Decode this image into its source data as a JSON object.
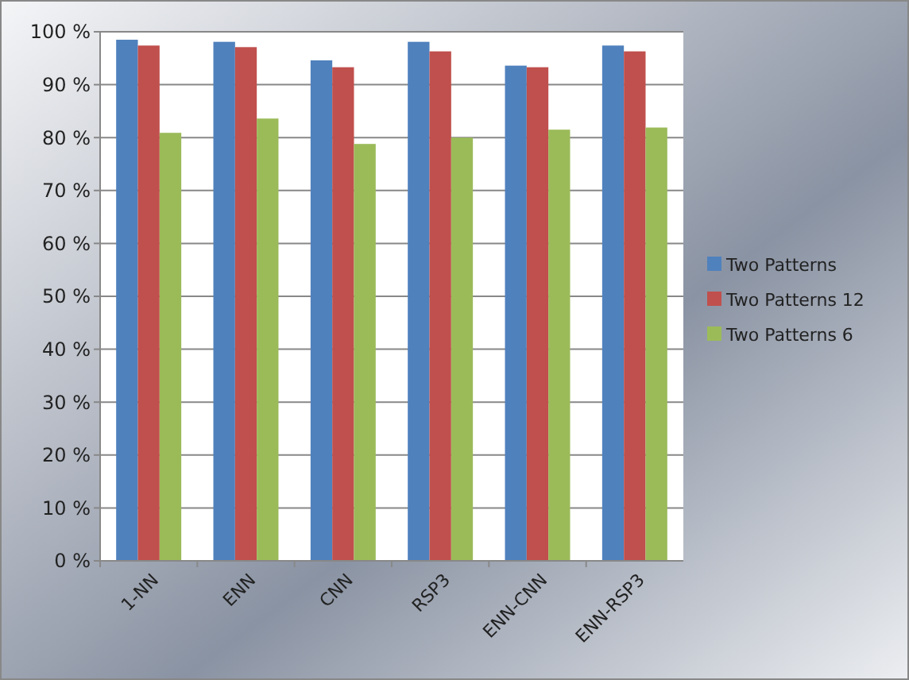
{
  "chart_data": {
    "type": "bar",
    "categories": [
      "1-NN",
      "ENN",
      "CNN",
      "RSP3",
      "ENN-CNN",
      "ENN-RSP3"
    ],
    "series": [
      {
        "name": "Two Patterns",
        "color": "#4f81bd",
        "values": [
          98.5,
          98.1,
          94.6,
          98.1,
          93.6,
          97.4
        ]
      },
      {
        "name": "Two Patterns 12",
        "color": "#c0504d",
        "values": [
          97.4,
          97.1,
          93.3,
          96.3,
          93.3,
          96.3
        ]
      },
      {
        "name": "Two Patterns 6",
        "color": "#9bbb59",
        "values": [
          80.9,
          83.6,
          78.8,
          80.0,
          81.5,
          81.9
        ]
      }
    ],
    "ylim": [
      0,
      100
    ],
    "yticks": [
      {
        "value": 0,
        "label": "0 %"
      },
      {
        "value": 10,
        "label": "10 %"
      },
      {
        "value": 20,
        "label": "20 %"
      },
      {
        "value": 30,
        "label": "30 %"
      },
      {
        "value": 40,
        "label": "40 %"
      },
      {
        "value": 50,
        "label": "50 %"
      },
      {
        "value": 60,
        "label": "60 %"
      },
      {
        "value": 70,
        "label": "70 %"
      },
      {
        "value": 80,
        "label": "80 %"
      },
      {
        "value": 90,
        "label": "90 %"
      },
      {
        "value": 100,
        "label": "100 %"
      }
    ],
    "grid": "y",
    "legend": "right"
  }
}
